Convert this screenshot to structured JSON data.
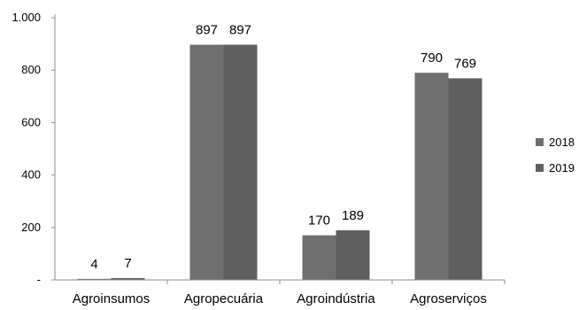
{
  "chart_data": {
    "type": "bar",
    "title": "",
    "xlabel": "",
    "ylabel": "",
    "categories": [
      "Agroinsumos",
      "Agropecuária",
      "Agroindústria",
      "Agroserviços"
    ],
    "series": [
      {
        "name": "2018",
        "values": [
          4,
          897,
          170,
          790
        ],
        "labels": [
          "4",
          "897",
          "170",
          "790"
        ],
        "color": "#6f6f6f"
      },
      {
        "name": "2019",
        "values": [
          7,
          897,
          189,
          769
        ],
        "labels": [
          "7",
          "897",
          "189",
          "769"
        ],
        "color": "#5f5f5f"
      }
    ],
    "ylim": [
      0,
      1000
    ],
    "yticks": [
      0,
      200,
      400,
      600,
      800,
      1000
    ],
    "ytick_labels": [
      "-",
      "200",
      "400",
      "600",
      "800",
      "1.000"
    ],
    "grid": false,
    "legend_position": "right"
  }
}
